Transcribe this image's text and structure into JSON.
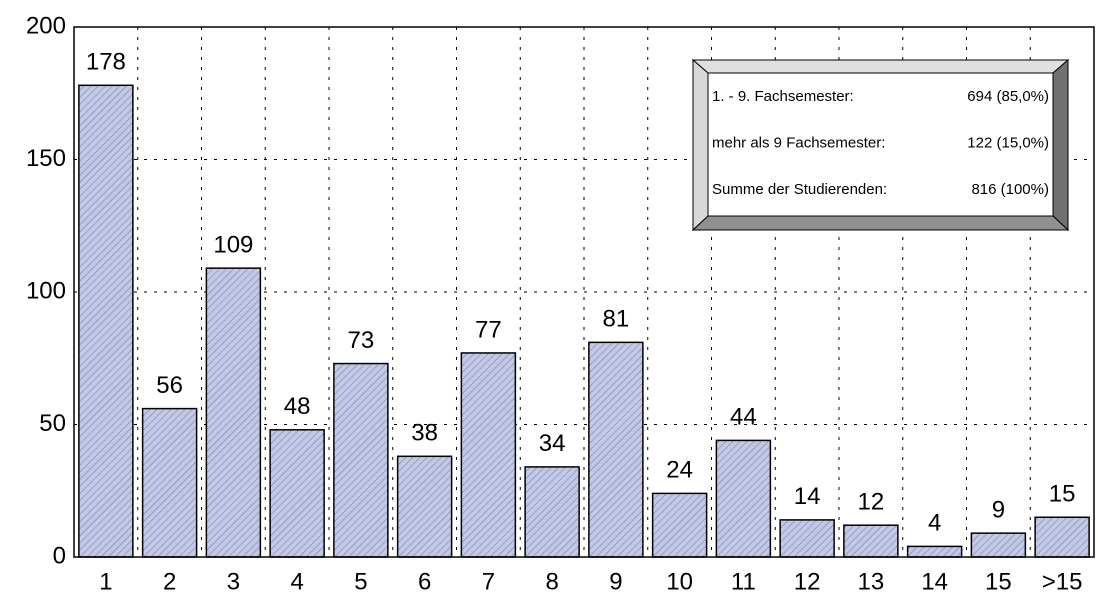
{
  "chart_data": {
    "type": "bar",
    "categories": [
      "1",
      "2",
      "3",
      "4",
      "5",
      "6",
      "7",
      "8",
      "9",
      "10",
      "11",
      "12",
      "13",
      "14",
      "15",
      ">15"
    ],
    "values": [
      178,
      56,
      109,
      48,
      73,
      38,
      77,
      34,
      81,
      24,
      44,
      14,
      12,
      4,
      9,
      15
    ],
    "color": "#c3c8e6",
    "ylim": [
      0,
      200
    ],
    "yticks": [
      0,
      50,
      100,
      150,
      200
    ],
    "grid": true,
    "annotations": [
      {
        "label": "1. - 9. Fachsemester:",
        "value": "694 (85,0%)"
      },
      {
        "label": "mehr als 9 Fachsemester:",
        "value": "122 (15,0%)"
      },
      {
        "label": "Summe der Studierenden:",
        "value": "816 (100%)"
      }
    ]
  }
}
